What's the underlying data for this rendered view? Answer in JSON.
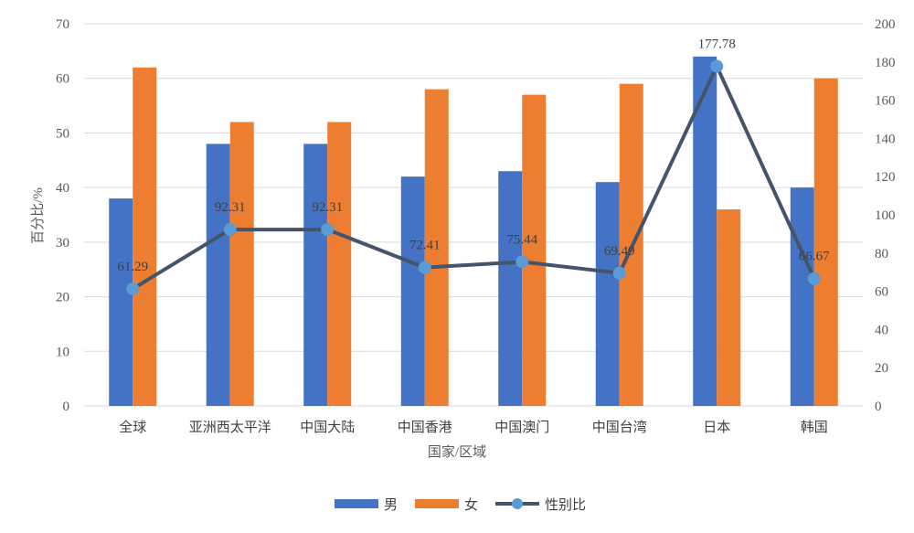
{
  "chart_data": {
    "type": "bar",
    "categories": [
      "全球",
      "亚洲西太平洋",
      "中国大陆",
      "中国香港",
      "中国澳门",
      "中国台湾",
      "日本",
      "韩国"
    ],
    "series": [
      {
        "name": "男",
        "type": "bar",
        "axis": "left",
        "color": "#4472C4",
        "values": [
          38,
          48,
          48,
          42,
          43,
          41,
          64,
          40
        ]
      },
      {
        "name": "女",
        "type": "bar",
        "axis": "left",
        "color": "#ED7D31",
        "values": [
          62,
          52,
          52,
          58,
          57,
          59,
          36,
          60
        ]
      },
      {
        "name": "性别比",
        "type": "line",
        "axis": "right",
        "color": "#44546A",
        "marker_color": "#5B9BD5",
        "values": [
          61.29,
          92.31,
          92.31,
          72.41,
          75.44,
          69.49,
          177.78,
          66.67
        ],
        "data_labels": [
          "61.29",
          "92.31",
          "92.31",
          "72.41",
          "75.44",
          "69.49",
          "177.78",
          "66.67"
        ]
      }
    ],
    "y_left": {
      "min": 0,
      "max": 70,
      "step": 10,
      "label": "百分比/%"
    },
    "y_right": {
      "min": 0,
      "max": 200,
      "step": 20
    },
    "xlabel": "国家/区域",
    "grid": true,
    "legend_position": "bottom"
  }
}
